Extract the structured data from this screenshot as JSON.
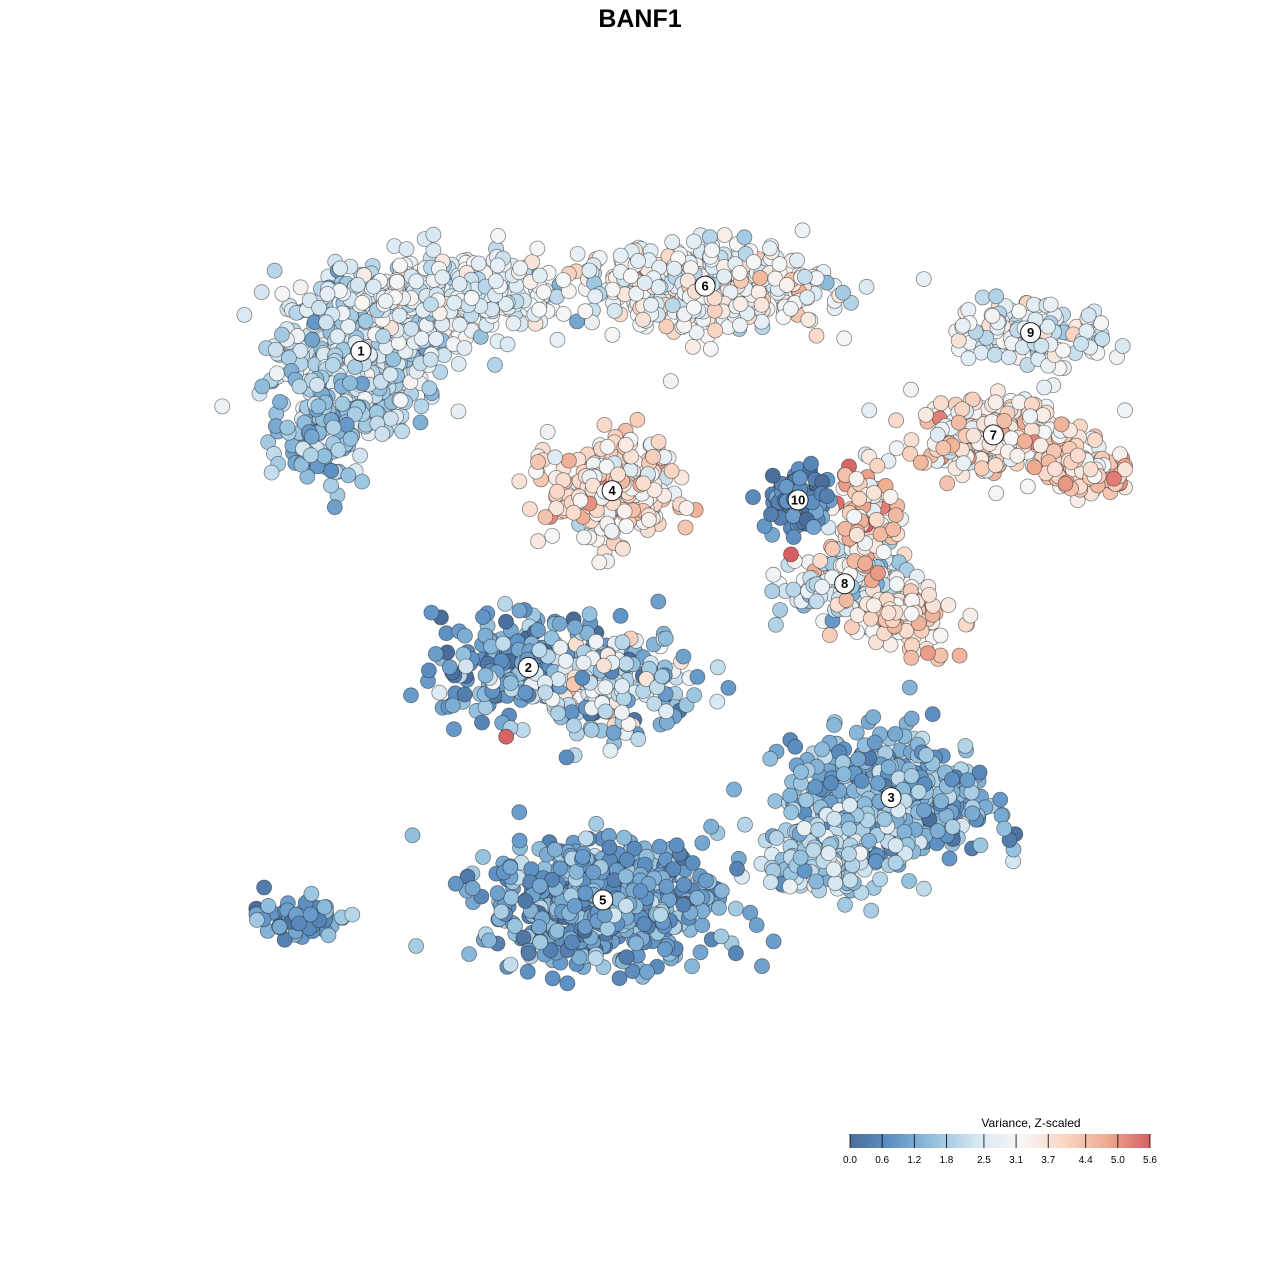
{
  "chart_data": {
    "type": "scatter",
    "title": "BANF1",
    "xlabel": "",
    "ylabel": "",
    "grid": false,
    "legend_placement": "bottom-right",
    "legend": {
      "title": "Variance, Z-scaled",
      "ticks": [
        "0.0",
        "0.6",
        "1.2",
        "1.8",
        "2.5",
        "3.1",
        "3.7",
        "4.4",
        "5.0",
        "5.6"
      ],
      "min": 0.0,
      "max": 5.6,
      "colors": [
        "#4a6e9c",
        "#5f93c6",
        "#96c3df",
        "#d8e8f2",
        "#f7f7f7",
        "#f9d6c4",
        "#eeaa90",
        "#d65f63"
      ]
    },
    "clusters": [
      {
        "label": "1",
        "x": -30,
        "y": 16
      },
      {
        "label": "2",
        "x": -12,
        "y": -18
      },
      {
        "label": "3",
        "x": 27,
        "y": -32
      },
      {
        "label": "4",
        "x": -3,
        "y": 1
      },
      {
        "label": "5",
        "x": -4,
        "y": -43
      },
      {
        "label": "6",
        "x": 7,
        "y": 23
      },
      {
        "label": "7",
        "x": 38,
        "y": 7
      },
      {
        "label": "8",
        "x": 22,
        "y": -9
      },
      {
        "label": "9",
        "x": 42,
        "y": 18
      },
      {
        "label": "10",
        "x": 17,
        "y": 0
      }
    ]
  }
}
